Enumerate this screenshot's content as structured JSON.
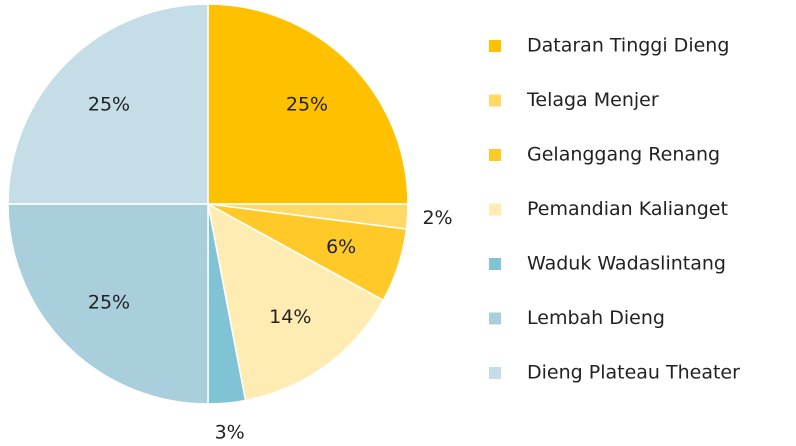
{
  "chart_data": {
    "type": "pie",
    "categories": [
      "Dataran Tinggi Dieng",
      "Telaga Menjer",
      "Gelanggang Renang",
      "Pemandian Kalianget",
      "Waduk Wadaslintang",
      "Lembah Dieng",
      "Dieng Plateau Theater"
    ],
    "values": [
      25,
      2,
      6,
      14,
      3,
      25,
      25
    ],
    "value_labels": [
      "25%",
      "2%",
      "6%",
      "14%",
      "3%",
      "25%",
      "25%"
    ],
    "colors": [
      "#FFC000",
      "#FFD966",
      "#FFCA28",
      "#FFECB3",
      "#7FC3D4",
      "#A9CEDC",
      "#C5DDE7"
    ],
    "legend": "right"
  }
}
